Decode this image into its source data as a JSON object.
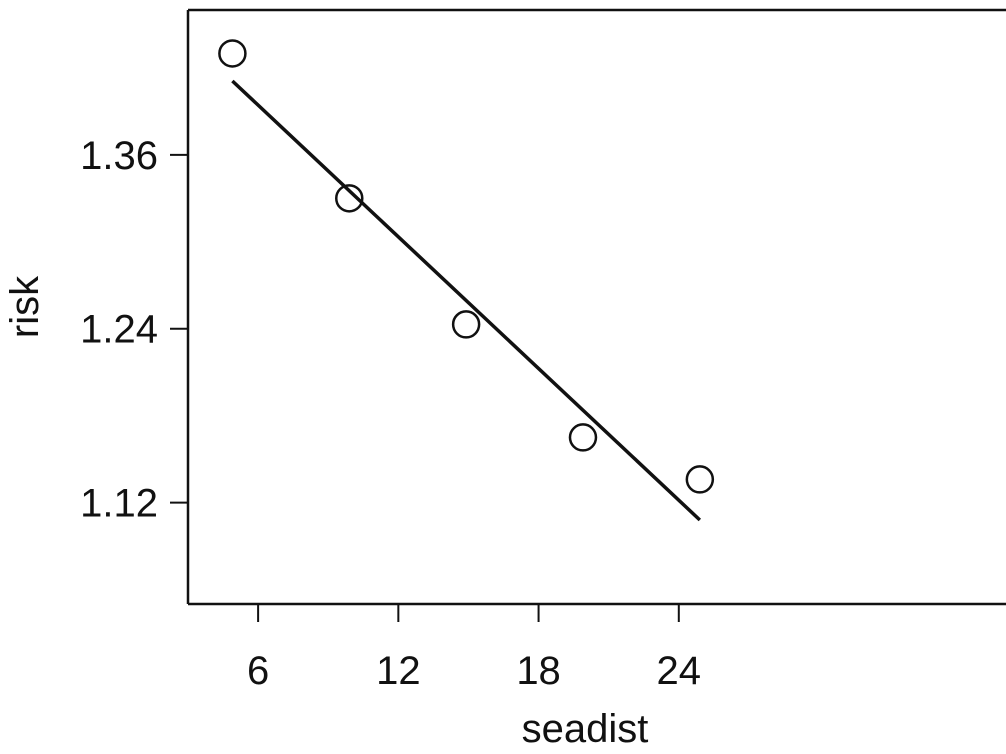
{
  "chart_data": {
    "type": "scatter",
    "title": "",
    "xlabel": "seadist",
    "ylabel": "risk",
    "xlim": [
      3,
      38
    ],
    "ylim": [
      1.05,
      1.46
    ],
    "x_ticks": [
      6,
      12,
      18,
      24
    ],
    "x_tick_labels": [
      "6",
      "12",
      "18",
      "24"
    ],
    "y_ticks": [
      1.12,
      1.24,
      1.36
    ],
    "y_tick_labels": [
      "1.12",
      "1.24",
      "1.36"
    ],
    "grid": false,
    "series": [
      {
        "marker": "open-circle",
        "x": [
          4.9,
          9.9,
          14.9,
          19.9,
          24.9
        ],
        "y": [
          1.43,
          1.33,
          1.243,
          1.165,
          1.136
        ]
      }
    ],
    "fit_line": {
      "x": [
        4.9,
        24.9
      ],
      "y": [
        1.411,
        1.108
      ]
    },
    "colors": {
      "ink": "#111111",
      "background": "#ffffff"
    }
  }
}
